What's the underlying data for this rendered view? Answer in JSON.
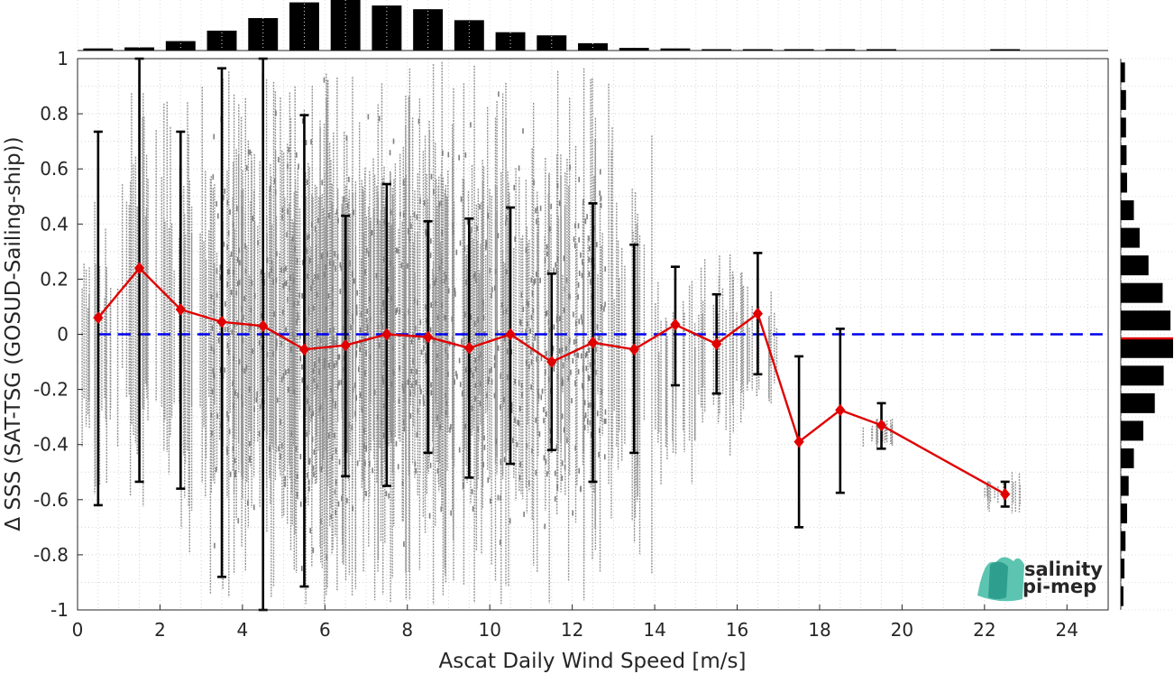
{
  "chart_data": {
    "type": "scatter",
    "xlabel": "Ascat Daily Wind Speed [m/s]",
    "ylabel": "Δ SSS (SAT-TSG (GOSUD-Sailing-ship))",
    "xlim": [
      0,
      25
    ],
    "ylim": [
      -1,
      1
    ],
    "x_ticks": [
      "0",
      "2",
      "4",
      "6",
      "8",
      "10",
      "12",
      "14",
      "16",
      "18",
      "20",
      "22",
      "24"
    ],
    "y_ticks": [
      "1",
      "0.8",
      "0.6",
      "0.4",
      "0.2",
      "0",
      "-0.2",
      "-0.4",
      "-0.6",
      "-0.8",
      "-1"
    ],
    "grid": true,
    "reference_line": {
      "y": 0,
      "style": "dashed",
      "color": "#0000ee"
    },
    "series": [
      {
        "role": "binned mean with standard deviation bars",
        "color": "#e00000",
        "points": [
          {
            "x": 0.5,
            "mean": 0.06,
            "low": -0.62,
            "high": 0.735
          },
          {
            "x": 1.5,
            "mean": 0.24,
            "low": -0.535,
            "high": 1.0
          },
          {
            "x": 2.5,
            "mean": 0.09,
            "low": -0.56,
            "high": 0.735
          },
          {
            "x": 3.5,
            "mean": 0.045,
            "low": -0.88,
            "high": 0.965
          },
          {
            "x": 4.5,
            "mean": 0.03,
            "low": -1.0,
            "high": 1.0
          },
          {
            "x": 5.5,
            "mean": -0.055,
            "low": -0.915,
            "high": 0.795
          },
          {
            "x": 6.5,
            "mean": -0.04,
            "low": -0.515,
            "high": 0.43
          },
          {
            "x": 7.5,
            "mean": 0.0,
            "low": -0.55,
            "high": 0.545
          },
          {
            "x": 8.5,
            "mean": -0.01,
            "low": -0.43,
            "high": 0.41
          },
          {
            "x": 9.5,
            "mean": -0.05,
            "low": -0.52,
            "high": 0.42
          },
          {
            "x": 10.5,
            "mean": 0.0,
            "low": -0.47,
            "high": 0.46
          },
          {
            "x": 11.5,
            "mean": -0.1,
            "low": -0.42,
            "high": 0.22
          },
          {
            "x": 12.5,
            "mean": -0.03,
            "low": -0.535,
            "high": 0.475
          },
          {
            "x": 13.5,
            "mean": -0.055,
            "low": -0.43,
            "high": 0.325
          },
          {
            "x": 14.5,
            "mean": 0.035,
            "low": -0.185,
            "high": 0.245
          },
          {
            "x": 15.5,
            "mean": -0.035,
            "low": -0.215,
            "high": 0.145
          },
          {
            "x": 16.5,
            "mean": 0.075,
            "low": -0.145,
            "high": 0.295
          },
          {
            "x": 17.5,
            "mean": -0.39,
            "low": -0.7,
            "high": -0.08
          },
          {
            "x": 18.5,
            "mean": -0.275,
            "low": -0.575,
            "high": 0.02
          },
          {
            "x": 19.5,
            "mean": -0.33,
            "low": -0.415,
            "high": -0.25
          },
          {
            "x": 22.5,
            "mean": -0.58,
            "low": -0.625,
            "high": -0.535
          }
        ]
      }
    ],
    "scatter_cloud": {
      "color": "#808080",
      "spread_by_bin": [
        {
          "x": 0.5,
          "low": -0.6,
          "high": 0.5
        },
        {
          "x": 1.5,
          "low": -0.7,
          "high": 0.95
        },
        {
          "x": 2.5,
          "low": -0.8,
          "high": 0.9
        },
        {
          "x": 3.5,
          "low": -1.0,
          "high": 1.0
        },
        {
          "x": 4.5,
          "low": -1.0,
          "high": 1.0
        },
        {
          "x": 5.5,
          "low": -1.0,
          "high": 1.0
        },
        {
          "x": 6.5,
          "low": -1.0,
          "high": 1.0
        },
        {
          "x": 7.5,
          "low": -1.0,
          "high": 1.0
        },
        {
          "x": 8.5,
          "low": -1.0,
          "high": 1.0
        },
        {
          "x": 9.5,
          "low": -1.0,
          "high": 1.0
        },
        {
          "x": 10.5,
          "low": -1.0,
          "high": 1.0
        },
        {
          "x": 11.5,
          "low": -1.0,
          "high": 1.0
        },
        {
          "x": 12.5,
          "low": -1.0,
          "high": 1.0
        },
        {
          "x": 13.5,
          "low": -0.9,
          "high": 0.75
        },
        {
          "x": 14.5,
          "low": -0.6,
          "high": 0.25
        },
        {
          "x": 15.5,
          "low": -0.45,
          "high": 0.3
        },
        {
          "x": 16.5,
          "low": -0.35,
          "high": 0.25
        },
        {
          "x": 19.5,
          "low": -0.43,
          "high": -0.3
        },
        {
          "x": 22.5,
          "low": -0.65,
          "high": -0.5
        }
      ]
    },
    "top_histogram": {
      "x": [
        0.5,
        1.5,
        2.5,
        3.5,
        4.5,
        5.5,
        6.5,
        7.5,
        8.5,
        9.5,
        10.5,
        11.5,
        12.5,
        13.5,
        14.5,
        15.5,
        16.5,
        17.5,
        18.5,
        19.5,
        22.5
      ],
      "relative_counts": [
        0.04,
        0.06,
        0.18,
        0.38,
        0.62,
        0.92,
        1.0,
        0.86,
        0.79,
        0.58,
        0.35,
        0.29,
        0.14,
        0.05,
        0.04,
        0.02,
        0.01,
        0.005,
        0.004,
        0.004,
        0.003
      ]
    },
    "right_histogram": {
      "y": [
        0.95,
        0.85,
        0.75,
        0.65,
        0.55,
        0.45,
        0.35,
        0.25,
        0.15,
        0.05,
        -0.05,
        -0.15,
        -0.25,
        -0.35,
        -0.45,
        -0.55,
        -0.65,
        -0.75,
        -0.85,
        -0.95
      ],
      "relative_counts": [
        0.08,
        0.1,
        0.1,
        0.11,
        0.12,
        0.25,
        0.36,
        0.53,
        0.8,
        0.95,
        1.0,
        0.82,
        0.65,
        0.43,
        0.25,
        0.15,
        0.12,
        0.09,
        0.07,
        0.05
      ],
      "mean_marker": {
        "y": -0.015,
        "color": "#e00000"
      }
    }
  },
  "logo": {
    "line1": "salinity",
    "line2": "pi-mep"
  }
}
